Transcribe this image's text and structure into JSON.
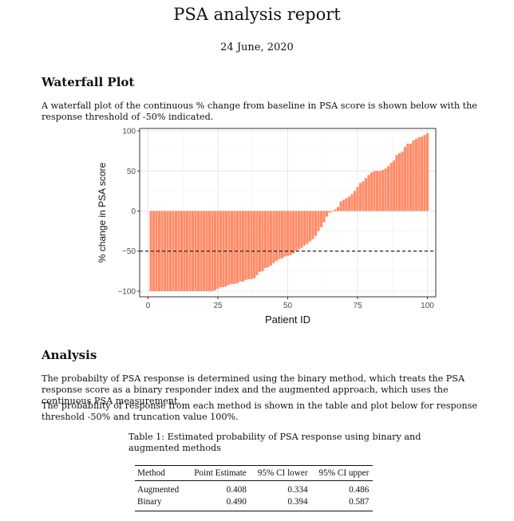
{
  "report": {
    "title": "PSA analysis report",
    "date": "24 June, 2020"
  },
  "waterfall": {
    "heading": "Waterfall Plot",
    "description": "A waterfall plot of the continuous % change from baseline in PSA score is shown below with the response threshold of -50% indicated."
  },
  "chart_data": {
    "type": "bar",
    "xlabel": "Patient ID",
    "ylabel": "% change in PSA score",
    "xlim": [
      -3,
      103
    ],
    "ylim": [
      -107,
      103
    ],
    "xticks": [
      0,
      25,
      50,
      75,
      100
    ],
    "yticks": [
      -100,
      -50,
      0,
      50,
      100
    ],
    "grid": true,
    "bar_color": "#ff8c69",
    "reference_line": {
      "y": -50,
      "style": "dashed",
      "color": "#222222"
    },
    "x": [
      1,
      2,
      3,
      4,
      5,
      6,
      7,
      8,
      9,
      10,
      11,
      12,
      13,
      14,
      15,
      16,
      17,
      18,
      19,
      20,
      21,
      22,
      23,
      24,
      25,
      26,
      27,
      28,
      29,
      30,
      31,
      32,
      33,
      34,
      35,
      36,
      37,
      38,
      39,
      40,
      41,
      42,
      43,
      44,
      45,
      46,
      47,
      48,
      49,
      50,
      51,
      52,
      53,
      54,
      55,
      56,
      57,
      58,
      59,
      60,
      61,
      62,
      63,
      64,
      65,
      66,
      67,
      68,
      69,
      70,
      71,
      72,
      73,
      74,
      75,
      76,
      77,
      78,
      79,
      80,
      81,
      82,
      83,
      84,
      85,
      86,
      87,
      88,
      89,
      90,
      91,
      92,
      93,
      94,
      95,
      96,
      97,
      98,
      99,
      100
    ],
    "values": [
      -100,
      -100,
      -100,
      -100,
      -100,
      -100,
      -100,
      -100,
      -100,
      -100,
      -100,
      -100,
      -100,
      -100,
      -100,
      -100,
      -100,
      -100,
      -100,
      -100,
      -100,
      -100,
      -100,
      -99,
      -97,
      -95,
      -95,
      -94,
      -92,
      -91,
      -91,
      -90,
      -88,
      -88,
      -86,
      -85,
      -85,
      -84,
      -80,
      -76,
      -75,
      -71,
      -70,
      -68,
      -65,
      -62,
      -60,
      -59,
      -57,
      -56,
      -55,
      -53,
      -50,
      -48,
      -46,
      -43,
      -41,
      -38,
      -35,
      -31,
      -25,
      -20,
      -14,
      -7,
      -2,
      0,
      2,
      5,
      12,
      14,
      16,
      18,
      21,
      25,
      30,
      35,
      37,
      41,
      45,
      48,
      50,
      50,
      50,
      51,
      53,
      56,
      60,
      63,
      70,
      72,
      74,
      80,
      84,
      84,
      88,
      90,
      92,
      93,
      95,
      97
    ]
  },
  "analysis": {
    "heading": "Analysis",
    "p1": "The probabilty of PSA response is determined using the binary method, which treats the PSA response score as a binary responder index and the augmented approach, which uses the continuous PSA measurement.",
    "p2": "The probability of response from each method is shown in the table and plot below for response threshold -50% and truncation value 100%."
  },
  "table": {
    "caption": "Table 1: Estimated probability of PSA response using binary and augmented methods",
    "headers": [
      "Method",
      "Point Estimate",
      "95% CI lower",
      "95% CI upper"
    ],
    "rows": [
      [
        "Augmented",
        "0.408",
        "0.334",
        "0.486"
      ],
      [
        "Binary",
        "0.490",
        "0.394",
        "0.587"
      ]
    ]
  }
}
